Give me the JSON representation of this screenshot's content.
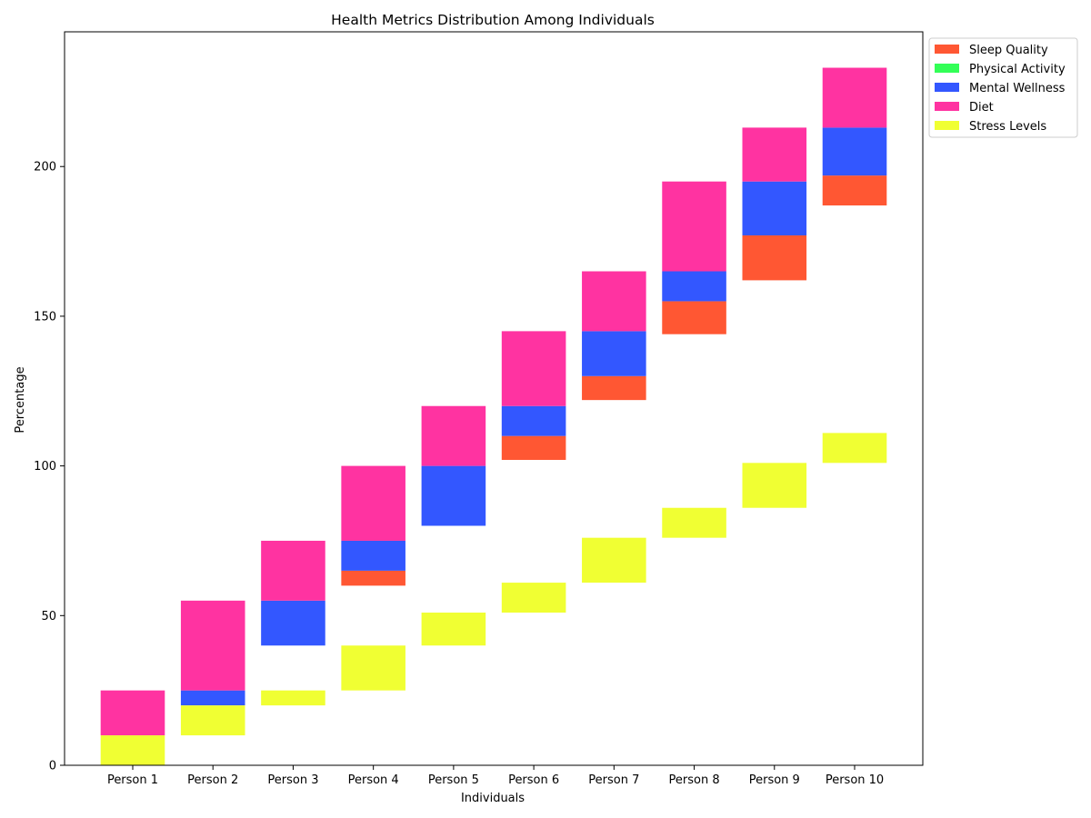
{
  "chart_data": {
    "type": "bar",
    "title": "Health Metrics Distribution Among Individuals",
    "xlabel": "Individuals",
    "ylabel": "Percentage",
    "ylim": [
      0,
      245
    ],
    "yticks": [
      0,
      50,
      100,
      150,
      200
    ],
    "grid": false,
    "legend_position": "top-right, outside plot",
    "categories": [
      "Person 1",
      "Person 2",
      "Person 3",
      "Person 4",
      "Person 5",
      "Person 6",
      "Person 7",
      "Person 8",
      "Person 9",
      "Person 10"
    ],
    "series": [
      {
        "name": "Sleep Quality",
        "color": "#ff5733",
        "segments": [
          [
            0,
            0
          ],
          [
            0,
            0
          ],
          [
            0,
            0
          ],
          [
            60,
            65
          ],
          [
            0,
            0
          ],
          [
            102,
            110
          ],
          [
            122,
            130
          ],
          [
            144,
            155
          ],
          [
            162,
            177
          ],
          [
            187,
            197
          ]
        ]
      },
      {
        "name": "Physical Activity",
        "color": "#33ff57",
        "segments": [
          [
            0,
            0
          ],
          [
            0,
            0
          ],
          [
            0,
            0
          ],
          [
            0,
            0
          ],
          [
            0,
            0
          ],
          [
            0,
            0
          ],
          [
            0,
            0
          ],
          [
            0,
            0
          ],
          [
            0,
            0
          ],
          [
            0,
            0
          ]
        ]
      },
      {
        "name": "Mental Wellness",
        "color": "#3357ff",
        "segments": [
          [
            0,
            0
          ],
          [
            20,
            25
          ],
          [
            40,
            55
          ],
          [
            65,
            75
          ],
          [
            80,
            100
          ],
          [
            110,
            120
          ],
          [
            130,
            145
          ],
          [
            155,
            165
          ],
          [
            177,
            195
          ],
          [
            197,
            213
          ]
        ]
      },
      {
        "name": "Diet",
        "color": "#ff33a1",
        "segments": [
          [
            10,
            25
          ],
          [
            25,
            55
          ],
          [
            55,
            75
          ],
          [
            75,
            100
          ],
          [
            100,
            120
          ],
          [
            120,
            145
          ],
          [
            145,
            165
          ],
          [
            165,
            195
          ],
          [
            195,
            213
          ],
          [
            213,
            233
          ]
        ]
      },
      {
        "name": "Stress Levels",
        "color": "#f0ff33",
        "segments": [
          [
            0,
            10
          ],
          [
            10,
            20
          ],
          [
            20,
            25
          ],
          [
            25,
            40
          ],
          [
            40,
            51
          ],
          [
            51,
            61
          ],
          [
            61,
            76
          ],
          [
            76,
            86
          ],
          [
            86,
            101
          ],
          [
            101,
            111
          ]
        ]
      }
    ]
  }
}
